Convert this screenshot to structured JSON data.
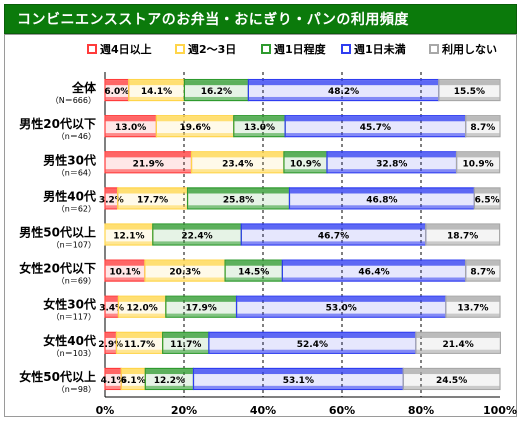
{
  "title": "コンビニエンスストアのお弁当・おにぎり・パンの利用頻度",
  "chart_data": {
    "type": "stacked-bar-horizontal-100",
    "legend": [
      {
        "name": "週4日以上",
        "color": "#ff3b3b"
      },
      {
        "name": "週2～3日",
        "color": "#ffd54a"
      },
      {
        "name": "週1日程度",
        "color": "#2e9a2e"
      },
      {
        "name": "週1日未満",
        "color": "#2f3df0"
      },
      {
        "name": "利用しない",
        "color": "#a8a8a8"
      }
    ],
    "legend_position": "top",
    "categories": [
      {
        "label": "全体",
        "n": "（N＝666）"
      },
      {
        "label": "男性20代以下",
        "n": "（n＝46）"
      },
      {
        "label": "男性30代",
        "n": "（n＝64）"
      },
      {
        "label": "男性40代",
        "n": "（n＝62）"
      },
      {
        "label": "男性50代以上",
        "n": "（n＝107）"
      },
      {
        "label": "女性20代以下",
        "n": "（n＝69）"
      },
      {
        "label": "女性30代",
        "n": "（n＝117）"
      },
      {
        "label": "女性40代",
        "n": "（n＝103）"
      },
      {
        "label": "女性50代以上",
        "n": "（n＝98）"
      }
    ],
    "values": [
      [
        6.0,
        14.1,
        16.2,
        48.2,
        15.5
      ],
      [
        13.0,
        19.6,
        13.0,
        45.7,
        8.7
      ],
      [
        21.9,
        23.4,
        10.9,
        32.8,
        10.9
      ],
      [
        3.2,
        17.7,
        25.8,
        46.8,
        6.5
      ],
      [
        0,
        12.1,
        22.4,
        46.7,
        18.7
      ],
      [
        10.1,
        20.3,
        14.5,
        46.4,
        8.7
      ],
      [
        3.4,
        12.0,
        17.9,
        53.0,
        13.7
      ],
      [
        2.9,
        11.7,
        11.7,
        52.4,
        21.4
      ],
      [
        4.1,
        6.1,
        12.2,
        53.1,
        24.5
      ]
    ],
    "labels": [
      [
        "6.0%",
        "14.1%",
        "16.2%",
        "48.2%",
        "15.5%"
      ],
      [
        "13.0%",
        "19.6%",
        "13.0%",
        "45.7%",
        "8.7%"
      ],
      [
        "21.9%",
        "23.4%",
        "10.9%",
        "32.8%",
        "10.9%"
      ],
      [
        "3.2%",
        "17.7%",
        "25.8%",
        "46.8%",
        "6.5%"
      ],
      [
        "",
        "12.1%",
        "22.4%",
        "46.7%",
        "18.7%"
      ],
      [
        "10.1%",
        "20.3%",
        "14.5%",
        "46.4%",
        "8.7%"
      ],
      [
        "3.4%",
        "12.0%",
        "17.9%",
        "53.0%",
        "13.7%"
      ],
      [
        "2.9%",
        "11.7%",
        "11.7%",
        "52.4%",
        "21.4%"
      ],
      [
        "4.1%",
        "6.1%",
        "12.2%",
        "53.1%",
        "24.5%"
      ]
    ],
    "x_ticks": [
      "0%",
      "20%",
      "40%",
      "60%",
      "80%",
      "100%"
    ],
    "xlim": [
      0,
      100
    ],
    "grid": true
  }
}
